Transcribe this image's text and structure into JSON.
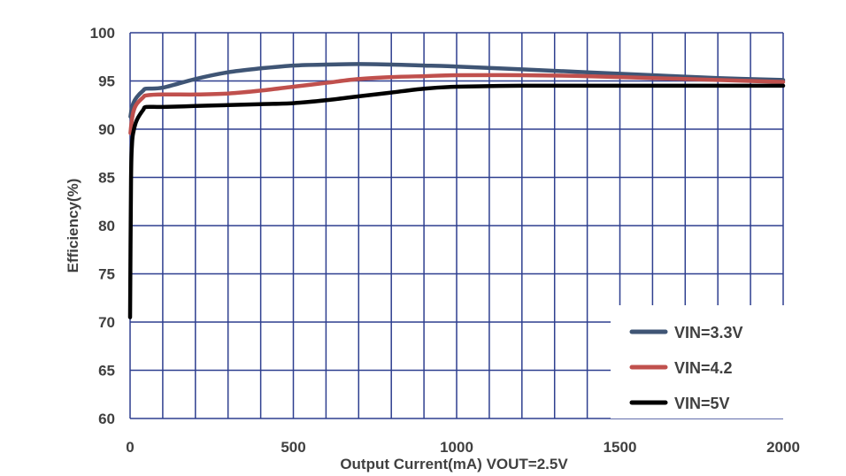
{
  "chart_data": {
    "type": "line",
    "title": "",
    "xlabel": "Output Current(mA) VOUT=2.5V",
    "ylabel": "Efficiency(%)",
    "xlim": [
      0,
      2000
    ],
    "ylim": [
      60,
      100
    ],
    "x_ticks": [
      "0",
      "500",
      "1000",
      "1500",
      "2000"
    ],
    "y_ticks": [
      "60",
      "65",
      "70",
      "75",
      "80",
      "85",
      "90",
      "95",
      "100"
    ],
    "grid": true,
    "legend_position": "bottom-right",
    "series": [
      {
        "name": "VIN=3.3V",
        "color": "#3f5575",
        "x": [
          1,
          5,
          10,
          20,
          40,
          50,
          100,
          200,
          300,
          400,
          500,
          600,
          700,
          800,
          900,
          1000,
          1200,
          1400,
          1600,
          1800,
          2000
        ],
        "y": [
          91.3,
          92.1,
          92.7,
          93.3,
          94.0,
          94.2,
          94.3,
          95.2,
          95.9,
          96.3,
          96.6,
          96.7,
          96.75,
          96.7,
          96.6,
          96.5,
          96.2,
          95.9,
          95.6,
          95.3,
          95.1
        ]
      },
      {
        "name": "VIN=4.2",
        "color": "#c0504d",
        "x": [
          1,
          5,
          10,
          20,
          40,
          50,
          100,
          200,
          300,
          400,
          500,
          600,
          700,
          800,
          900,
          1000,
          1200,
          1400,
          1600,
          1800,
          2000
        ],
        "y": [
          89.6,
          90.8,
          91.8,
          92.6,
          93.3,
          93.5,
          93.6,
          93.6,
          93.7,
          94.0,
          94.4,
          94.8,
          95.2,
          95.4,
          95.5,
          95.6,
          95.6,
          95.5,
          95.3,
          95.1,
          94.9
        ]
      },
      {
        "name": "VIN=5V",
        "color": "#000000",
        "x": [
          0,
          3,
          6,
          10,
          20,
          40,
          50,
          100,
          200,
          300,
          400,
          500,
          600,
          700,
          800,
          900,
          1000,
          1200,
          1400,
          1600,
          1800,
          2000
        ],
        "y": [
          70.5,
          85.0,
          88.5,
          89.7,
          90.9,
          92.0,
          92.3,
          92.3,
          92.4,
          92.5,
          92.6,
          92.7,
          93.0,
          93.4,
          93.8,
          94.2,
          94.4,
          94.5,
          94.5,
          94.5,
          94.5,
          94.5
        ]
      }
    ]
  }
}
